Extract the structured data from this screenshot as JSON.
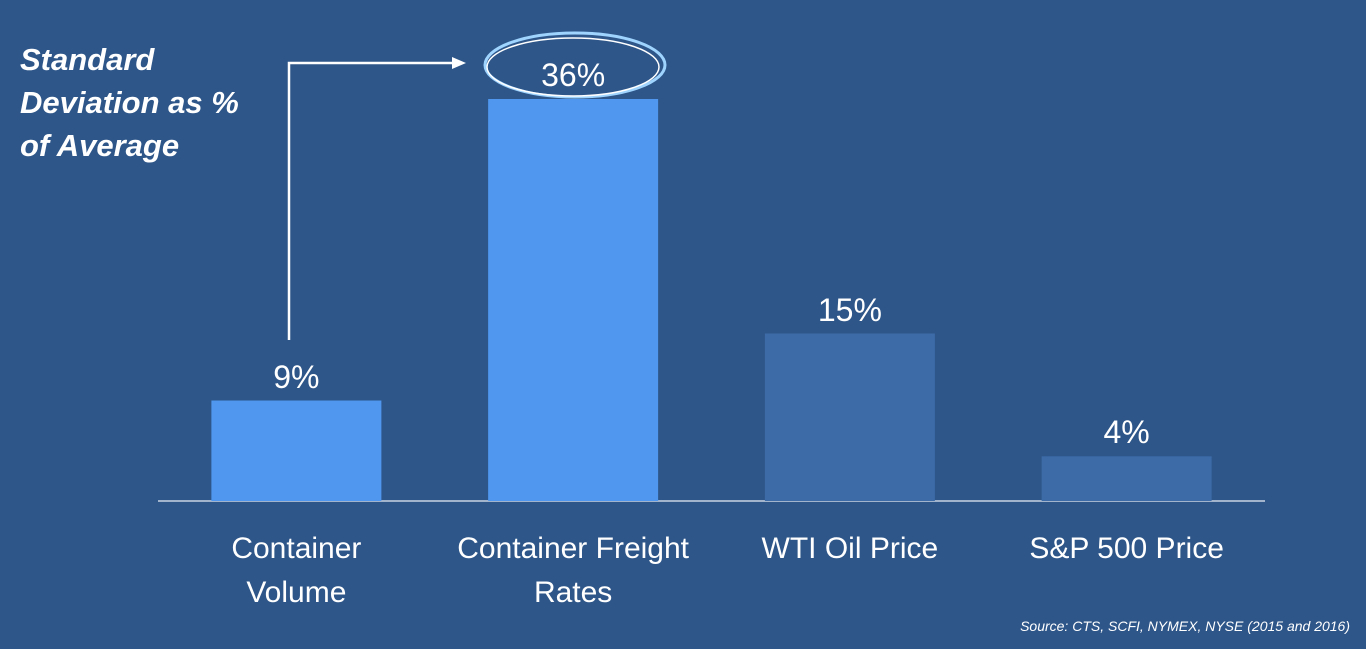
{
  "chart_data": {
    "type": "bar",
    "title": "Standard Deviation as % of Average",
    "source": "Source: CTS, SCFI, NYMEX, NYSE (2015 and 2016)",
    "categories": [
      "Container Volume",
      "Container Freight Rates",
      "WTI Oil Price",
      "S&P 500 Price"
    ],
    "values": [
      9,
      36,
      15,
      4
    ],
    "value_labels": [
      "9%",
      "36%",
      "15%",
      "4%"
    ],
    "colors": [
      "#4f97ef",
      "#4f97ef",
      "#3c6ba8",
      "#3c6ba8"
    ]
  }
}
